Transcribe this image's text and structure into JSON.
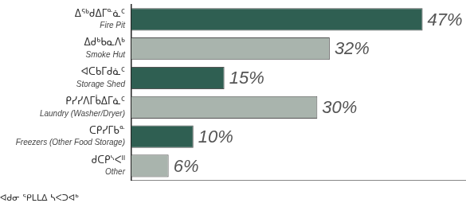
{
  "chart_data": {
    "type": "bar",
    "orientation": "horizontal",
    "title": "ᐊᑯᓂ ᕿᒪᒪᐃ ᓴᐸᑐᐊᒃ",
    "categories": [
      [
        "ᐃᖅᑯᐃᒥᓐᓈᑦ",
        "Fire Pit"
      ],
      [
        "ᐃᑯᒃᑲᓇᐱᒃ",
        "Smoke Hut"
      ],
      [
        "ᐊᑕᑲᒥᑯᓈᑦ",
        "Storage Shed"
      ],
      [
        "ᑭᓯᓯᐱᒥᑳᐃᒥᓈᑦ",
        "Laundry (Washer/Dryer)"
      ],
      [
        "ᑕᑭᓯᒥᑲᓐ",
        "Freezers (Other Food Storage)"
      ],
      [
        "ᑯᑕᑭᔅᐸᐦ",
        "Other"
      ]
    ],
    "values": [
      47,
      32,
      15,
      30,
      10,
      6
    ],
    "value_labels": [
      "47%",
      "32%",
      "15%",
      "30%",
      "10%",
      "6%"
    ],
    "colors": [
      "#2f5f52",
      "#a9b4ad",
      "#2f5f52",
      "#a9b4ad",
      "#2f5f52",
      "#a9b4ad"
    ],
    "xlim": [
      0,
      54
    ],
    "grid": false,
    "data_labels": true,
    "tick_labels": false
  }
}
